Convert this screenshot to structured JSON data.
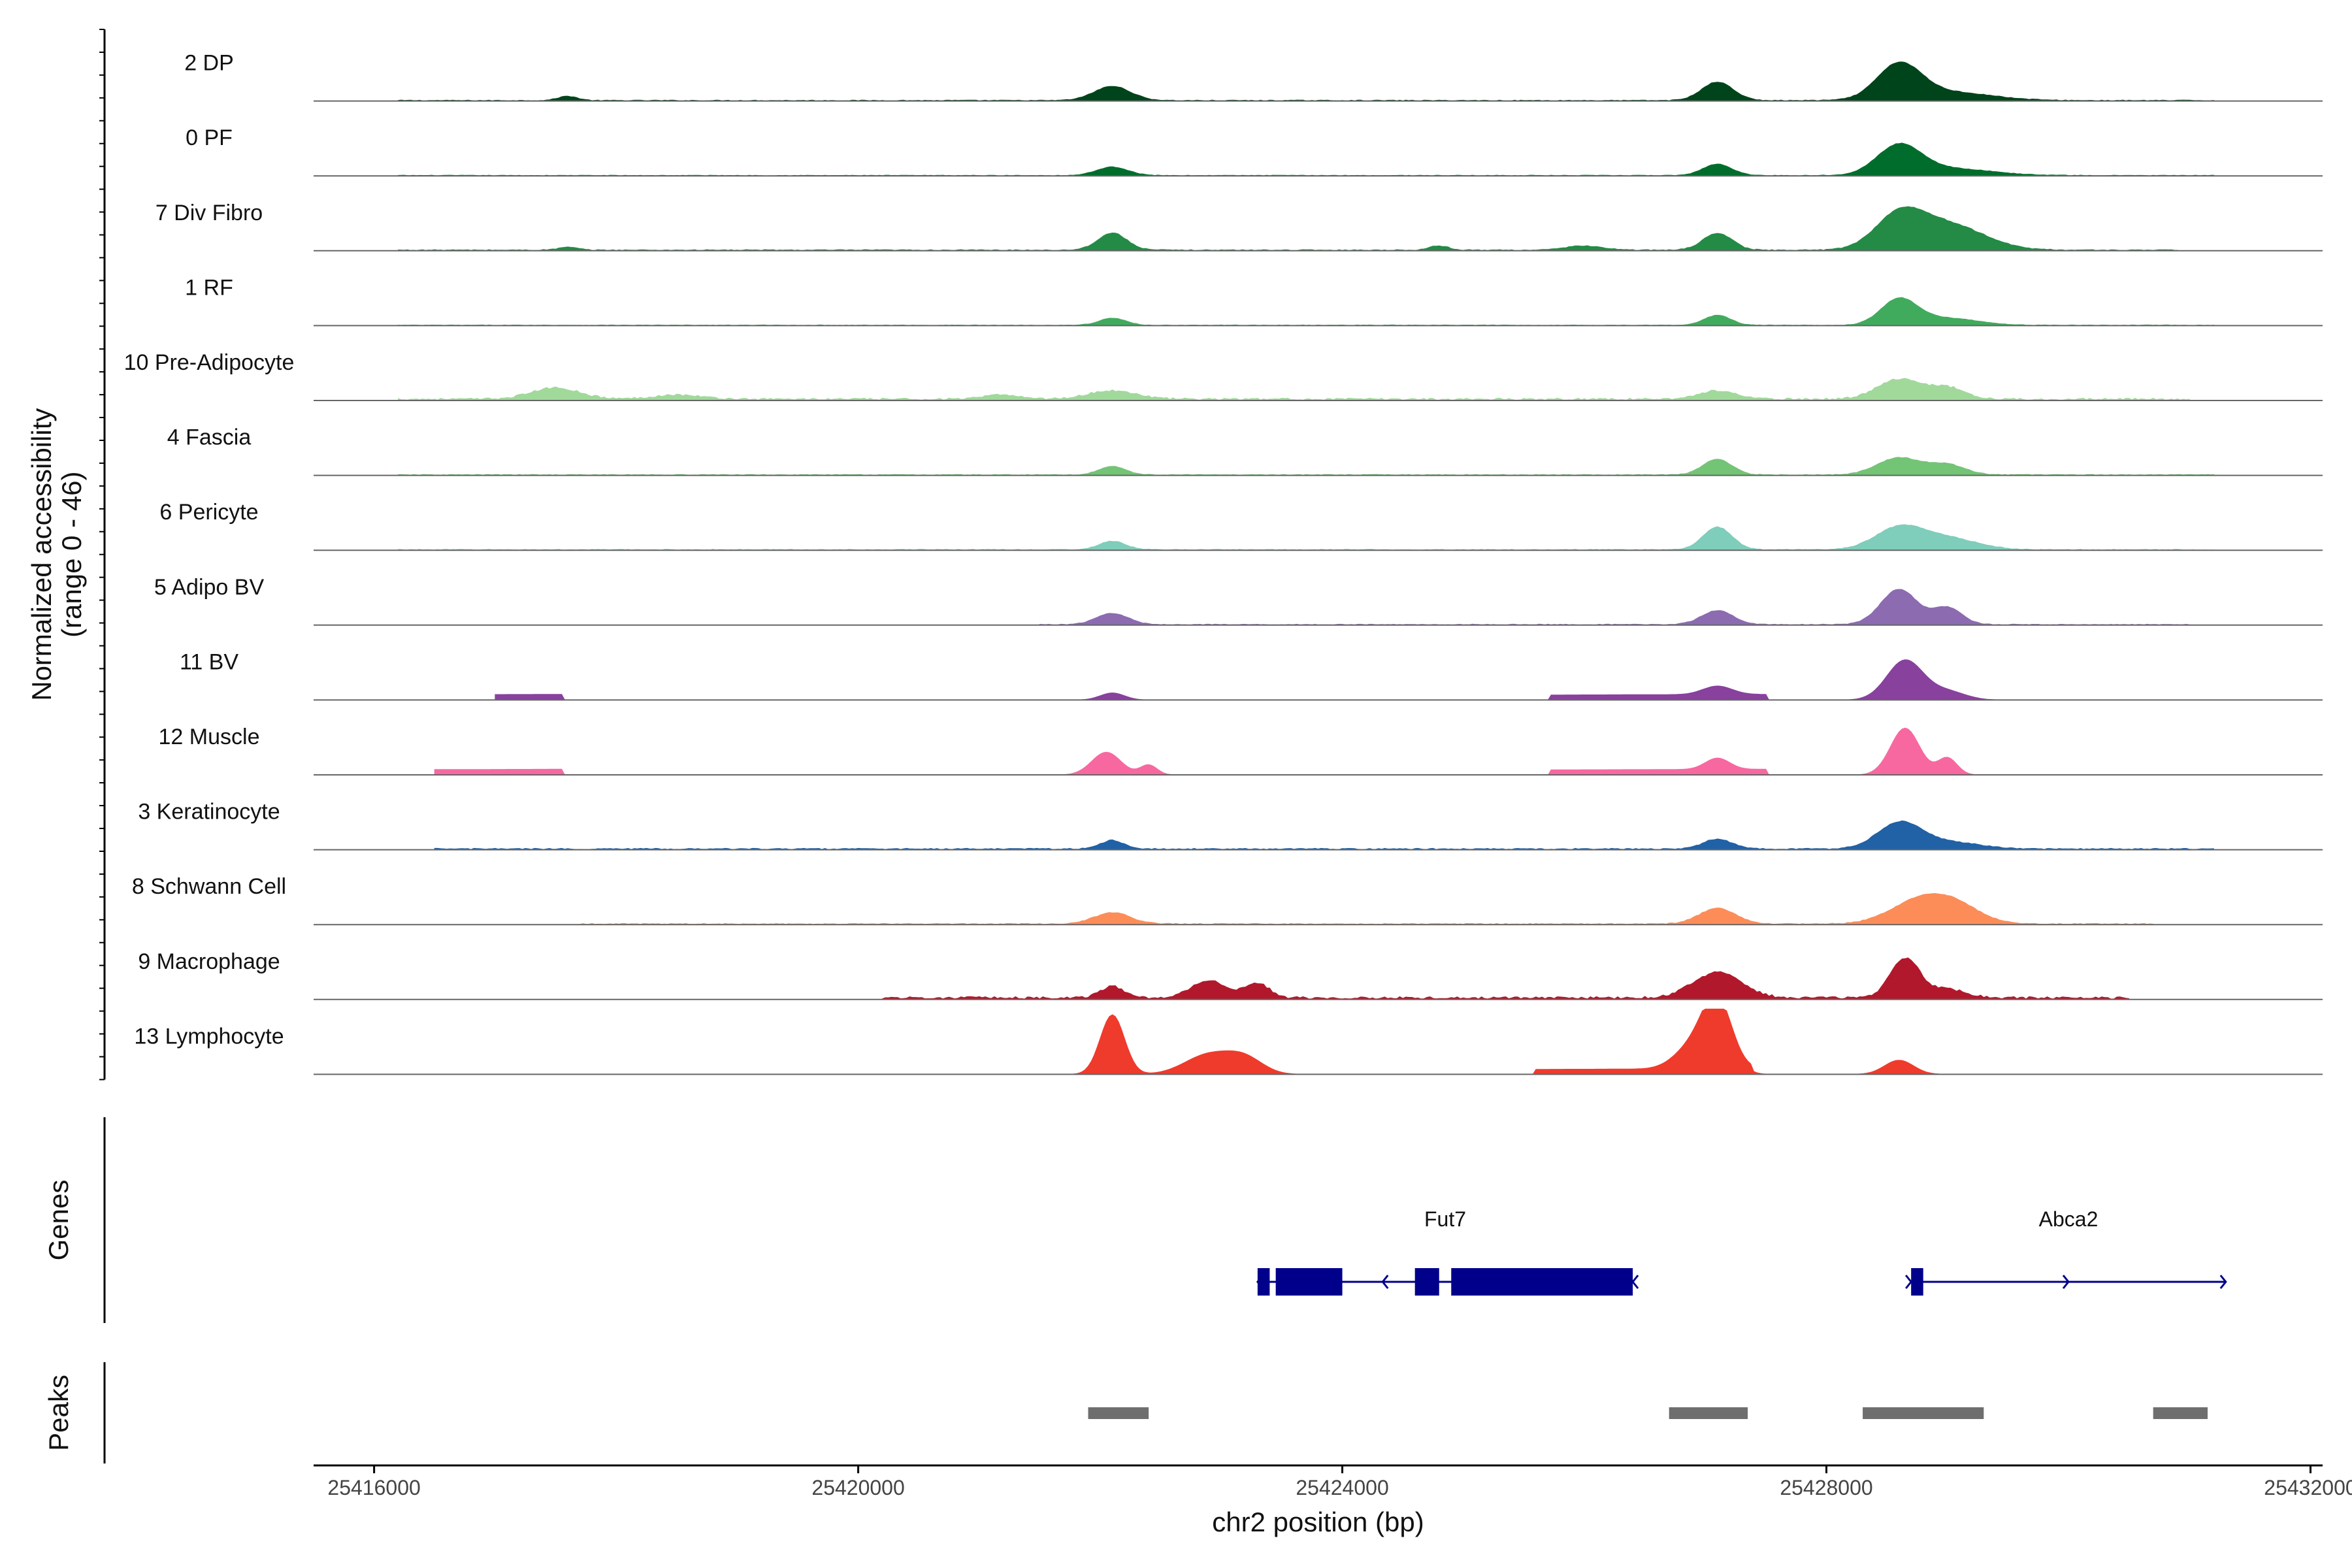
{
  "chart_data": {
    "type": "area",
    "title": "",
    "ylabel": [
      "Normalized accessibility",
      "(range 0 - 46)"
    ],
    "xlabel": "chr2 position (bp)",
    "xlim": [
      25415500,
      25432100
    ],
    "ylim": [
      0,
      46
    ],
    "x_ticks": [
      25416000,
      25420000,
      25424000,
      25428000,
      25432000
    ],
    "x_tick_labels": [
      "25416000",
      "25420000",
      "25424000",
      "25428000",
      "25432000"
    ],
    "grid": false,
    "tracks": [
      {
        "name": "2 DP",
        "color": "#00441B",
        "baseline": 0.4,
        "noise_start": 25416200,
        "noise_end": 25431200,
        "peaks": [
          [
            25417600,
            80,
            3
          ],
          [
            25422100,
            150,
            10
          ],
          [
            25427100,
            130,
            13
          ],
          [
            25428600,
            180,
            24
          ],
          [
            25429000,
            350,
            6
          ]
        ]
      },
      {
        "name": "0 PF",
        "color": "#006D2C",
        "baseline": 0.3,
        "noise_start": 25416200,
        "noise_end": 25431200,
        "peaks": [
          [
            25422100,
            130,
            6
          ],
          [
            25427100,
            120,
            8
          ],
          [
            25428600,
            180,
            20
          ],
          [
            25429000,
            350,
            5
          ]
        ]
      },
      {
        "name": "7 Div Fibro",
        "color": "#238B45",
        "baseline": 0.5,
        "noise_start": 25416200,
        "noise_end": 25430900,
        "peaks": [
          [
            25417600,
            80,
            2
          ],
          [
            25422100,
            120,
            12
          ],
          [
            25427100,
            120,
            12
          ],
          [
            25428600,
            200,
            22
          ],
          [
            25429000,
            300,
            18
          ],
          [
            25424800,
            80,
            3
          ],
          [
            25426000,
            150,
            3
          ]
        ]
      },
      {
        "name": "1 RF",
        "color": "#41AB5D",
        "baseline": 0.3,
        "noise_start": 25416200,
        "noise_end": 25431200,
        "peaks": [
          [
            25422100,
            110,
            5
          ],
          [
            25427100,
            110,
            7
          ],
          [
            25428600,
            150,
            18
          ],
          [
            25429000,
            250,
            5
          ]
        ]
      },
      {
        "name": "10 Pre-Adipocyte",
        "color": "#A1D99B",
        "baseline": 1.0,
        "noise_start": 25416200,
        "noise_end": 25431000,
        "peaks": [
          [
            25417500,
            200,
            8
          ],
          [
            25418500,
            200,
            3
          ],
          [
            25421200,
            150,
            3
          ],
          [
            25422100,
            200,
            6
          ],
          [
            25427100,
            150,
            6
          ],
          [
            25428600,
            180,
            14
          ],
          [
            25429000,
            150,
            8
          ]
        ]
      },
      {
        "name": "4 Fascia",
        "color": "#74C476",
        "baseline": 0.4,
        "noise_start": 25416200,
        "noise_end": 25431200,
        "peaks": [
          [
            25422100,
            110,
            6
          ],
          [
            25427100,
            120,
            11
          ],
          [
            25428600,
            180,
            12
          ],
          [
            25429000,
            150,
            7
          ]
        ]
      },
      {
        "name": "6 Pericyte",
        "color": "#7FCDBB",
        "baseline": 0.4,
        "noise_start": 25416200,
        "noise_end": 25431200,
        "peaks": [
          [
            25422100,
            110,
            6
          ],
          [
            25427100,
            120,
            16
          ],
          [
            25428600,
            200,
            15
          ],
          [
            25429000,
            250,
            8
          ]
        ]
      },
      {
        "name": "5 Adipo BV",
        "color": "#8C6BB1",
        "baseline": 0.4,
        "noise_start": 25421500,
        "noise_end": 25431000,
        "peaks": [
          [
            25422100,
            130,
            8
          ],
          [
            25427100,
            130,
            10
          ],
          [
            25428600,
            150,
            25
          ],
          [
            25429000,
            120,
            12
          ]
        ]
      },
      {
        "name": "11 BV",
        "color": "#88419D",
        "baseline": 0.0,
        "noise_start": 25417000,
        "noise_end": 25431000,
        "sparse": true,
        "peaks": [
          [
            25422100,
            100,
            5
          ],
          [
            25427100,
            120,
            6
          ],
          [
            25428650,
            150,
            28
          ],
          [
            25429000,
            150,
            6
          ]
        ]
      },
      {
        "name": "12 Muscle",
        "color": "#F768A1",
        "baseline": 0.0,
        "noise_start": 25416500,
        "noise_end": 25430900,
        "sparse": true,
        "peaks": [
          [
            25422050,
            120,
            16
          ],
          [
            25422400,
            70,
            7
          ],
          [
            25427100,
            100,
            8
          ],
          [
            25428650,
            120,
            33
          ],
          [
            25429000,
            80,
            12
          ]
        ]
      },
      {
        "name": "3 Keratinocyte",
        "color": "#2161A6",
        "baseline": 0.6,
        "noise_start": 25416500,
        "noise_end": 25431200,
        "peaks": [
          [
            25422100,
            100,
            6
          ],
          [
            25427100,
            120,
            7
          ],
          [
            25428600,
            180,
            18
          ],
          [
            25429000,
            250,
            5
          ]
        ]
      },
      {
        "name": "8 Schwann Cell",
        "color": "#FC8D59",
        "baseline": 0.5,
        "noise_start": 25417700,
        "noise_end": 25430700,
        "peaks": [
          [
            25422100,
            150,
            8
          ],
          [
            25427100,
            150,
            11
          ],
          [
            25428800,
            250,
            18
          ],
          [
            25429100,
            200,
            8
          ]
        ]
      },
      {
        "name": "9 Macrophage",
        "color": "#B2182B",
        "baseline": 1.2,
        "noise_start": 25420200,
        "noise_end": 25430500,
        "peaks": [
          [
            25422100,
            100,
            8
          ],
          [
            25422900,
            150,
            12
          ],
          [
            25423300,
            100,
            10
          ],
          [
            25427100,
            200,
            18
          ],
          [
            25428650,
            120,
            28
          ],
          [
            25429000,
            150,
            6
          ]
        ]
      },
      {
        "name": "13 Lymphocyte",
        "color": "#EF3B2C",
        "baseline": 0.0,
        "noise_start": 25420300,
        "noise_end": 25429200,
        "sparse": true,
        "peaks": [
          [
            25422100,
            100,
            42
          ],
          [
            25422900,
            200,
            14
          ],
          [
            25423200,
            150,
            10
          ],
          [
            25427100,
            120,
            46
          ],
          [
            25426900,
            150,
            16
          ],
          [
            25428600,
            120,
            10
          ]
        ]
      }
    ],
    "genes": [
      {
        "name": "Fut7",
        "start": 25423300,
        "end": 25426400,
        "strand": "-",
        "exons": [
          [
            25423300,
            25423400
          ],
          [
            25423450,
            25424000
          ],
          [
            25424600,
            25424800
          ],
          [
            25424900,
            25426400
          ]
        ]
      },
      {
        "name": "Abca2",
        "start": 25428700,
        "end": 25431300,
        "strand": "+",
        "exons": [
          [
            25428700,
            25428800
          ]
        ]
      }
    ],
    "peaks_track": [
      [
        25421900,
        25422400
      ],
      [
        25426700,
        25427350
      ],
      [
        25428300,
        25429300
      ],
      [
        25430700,
        25431150
      ]
    ],
    "panel_titles": {
      "genes": "Genes",
      "peaks": "Peaks"
    }
  }
}
